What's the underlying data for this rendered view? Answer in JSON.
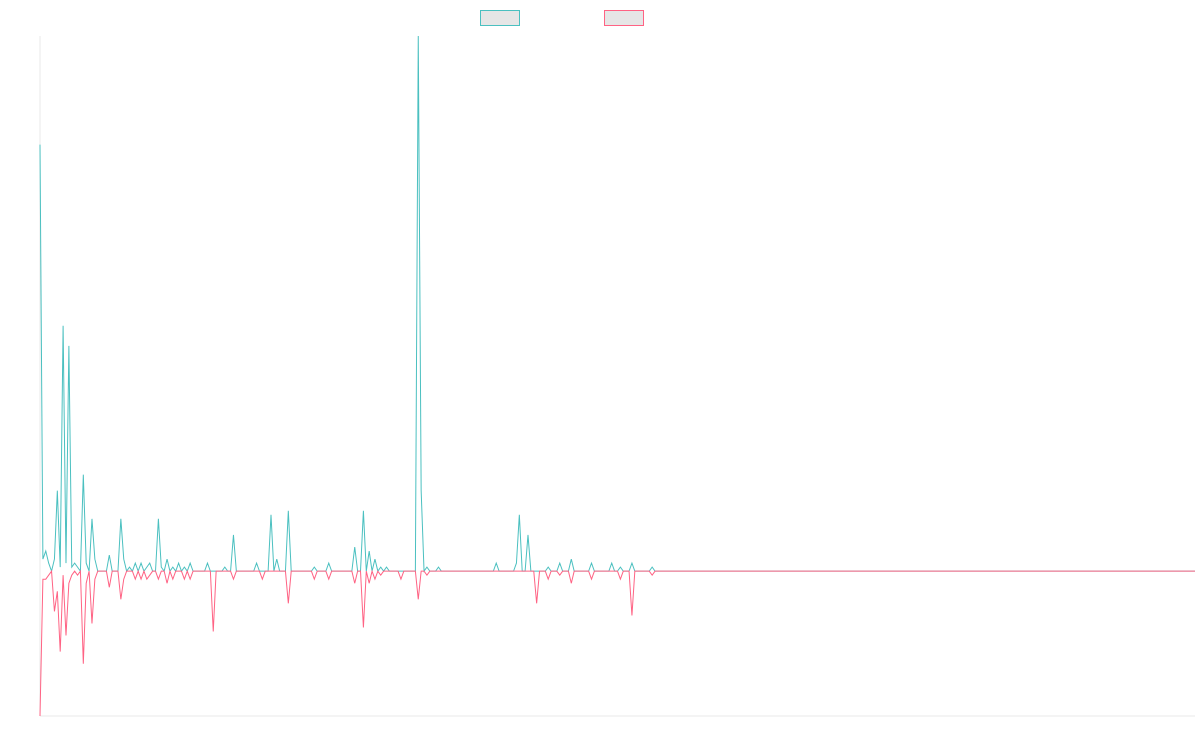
{
  "chart_data": {
    "type": "line",
    "title": "",
    "xlabel": "",
    "ylabel": "",
    "grid": false,
    "legend_position": "top-center",
    "ylim": [
      -36,
      133
    ],
    "x_count": 401,
    "series": [
      {
        "name": "",
        "color": "#4bc0c0",
        "baseline": 0,
        "spikes": [
          [
            0,
            106
          ],
          [
            1,
            3
          ],
          [
            2,
            5
          ],
          [
            3,
            2
          ],
          [
            5,
            3
          ],
          [
            6,
            20
          ],
          [
            7,
            1
          ],
          [
            8,
            61
          ],
          [
            9,
            2
          ],
          [
            10,
            56
          ],
          [
            11,
            1
          ],
          [
            12,
            2
          ],
          [
            13,
            1
          ],
          [
            15,
            24
          ],
          [
            16,
            2
          ],
          [
            18,
            13
          ],
          [
            19,
            3
          ],
          [
            24,
            4
          ],
          [
            28,
            13
          ],
          [
            29,
            3
          ],
          [
            31,
            1
          ],
          [
            33,
            2
          ],
          [
            35,
            2
          ],
          [
            37,
            1
          ],
          [
            38,
            2
          ],
          [
            41,
            13
          ],
          [
            42,
            1
          ],
          [
            44,
            3
          ],
          [
            46,
            1
          ],
          [
            48,
            2
          ],
          [
            50,
            1
          ],
          [
            52,
            2
          ],
          [
            58,
            2
          ],
          [
            64,
            1
          ],
          [
            67,
            9
          ],
          [
            75,
            2
          ],
          [
            80,
            14
          ],
          [
            82,
            3
          ],
          [
            86,
            15
          ],
          [
            95,
            1
          ],
          [
            100,
            2
          ],
          [
            109,
            6
          ],
          [
            112,
            15
          ],
          [
            114,
            5
          ],
          [
            116,
            3
          ],
          [
            118,
            1
          ],
          [
            120,
            1
          ],
          [
            131,
            133
          ],
          [
            132,
            20
          ],
          [
            134,
            1
          ],
          [
            138,
            1
          ],
          [
            158,
            2
          ],
          [
            165,
            2
          ],
          [
            166,
            14
          ],
          [
            169,
            9
          ],
          [
            176,
            1
          ],
          [
            180,
            2
          ],
          [
            184,
            3
          ],
          [
            191,
            2
          ],
          [
            198,
            2
          ],
          [
            201,
            1
          ],
          [
            205,
            2
          ],
          [
            212,
            1
          ],
          [
            400,
            0
          ]
        ]
      },
      {
        "name": "",
        "color": "#ff6384",
        "baseline": 0,
        "spikes": [
          [
            0,
            -36
          ],
          [
            1,
            -2
          ],
          [
            2,
            -2
          ],
          [
            3,
            -1
          ],
          [
            5,
            -10
          ],
          [
            6,
            -5
          ],
          [
            7,
            -20
          ],
          [
            8,
            -1
          ],
          [
            9,
            -16
          ],
          [
            10,
            -3
          ],
          [
            11,
            -1
          ],
          [
            13,
            -1
          ],
          [
            15,
            -23
          ],
          [
            16,
            -3
          ],
          [
            18,
            -13
          ],
          [
            19,
            -2
          ],
          [
            24,
            -4
          ],
          [
            28,
            -7
          ],
          [
            29,
            -2
          ],
          [
            33,
            -2
          ],
          [
            35,
            -2
          ],
          [
            37,
            -2
          ],
          [
            38,
            -1
          ],
          [
            41,
            -2
          ],
          [
            44,
            -3
          ],
          [
            46,
            -2
          ],
          [
            50,
            -2
          ],
          [
            52,
            -2
          ],
          [
            60,
            -15
          ],
          [
            67,
            -2
          ],
          [
            77,
            -2
          ],
          [
            86,
            -8
          ],
          [
            95,
            -2
          ],
          [
            100,
            -2
          ],
          [
            109,
            -3
          ],
          [
            112,
            -14
          ],
          [
            114,
            -3
          ],
          [
            116,
            -2
          ],
          [
            118,
            -1
          ],
          [
            125,
            -2
          ],
          [
            131,
            -7
          ],
          [
            134,
            -1
          ],
          [
            172,
            -8
          ],
          [
            176,
            -2
          ],
          [
            180,
            -1
          ],
          [
            184,
            -3
          ],
          [
            191,
            -2
          ],
          [
            201,
            -2
          ],
          [
            205,
            -11
          ],
          [
            212,
            -1
          ],
          [
            400,
            0
          ]
        ]
      }
    ]
  }
}
